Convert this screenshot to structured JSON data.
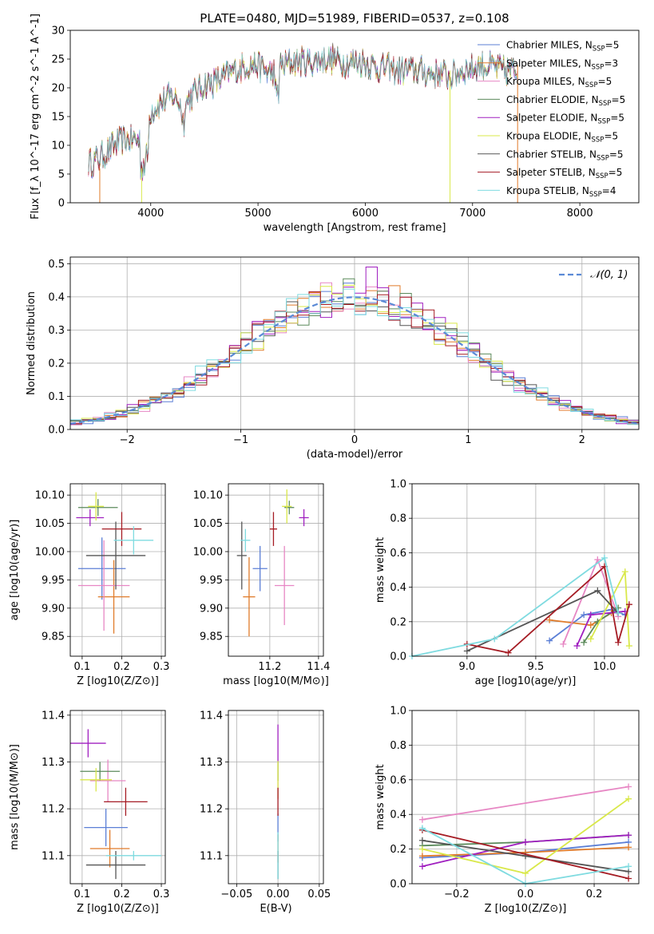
{
  "page_title": "PLATE=0480, MJD=51989, FIBERID=0537, z=0.108",
  "colors": {
    "Chabrier MILES": "#5b7fd6",
    "Salpeter MILES": "#e07b2a",
    "Kroupa MILES": "#e787c4",
    "Chabrier ELODIE": "#5b8a5b",
    "Salpeter ELODIE": "#a020c0",
    "Kroupa ELODIE": "#d9e84a",
    "Chabrier STELIB": "#555555",
    "Salpeter STELIB": "#a51c24",
    "Kroupa STELIB": "#7fdbe0",
    "normal_curve": "#5b8ad6",
    "grid": "#b0b0b0"
  },
  "chart_data": [
    {
      "id": "spectrum",
      "type": "line",
      "title": "PLATE=0480, MJD=51989, FIBERID=0537, z=0.108",
      "xlabel": "wavelength [Angstrom, rest frame]",
      "ylabel": "Flux [f_λ 10^-17 erg cm^-2 s^-1 A^-1]",
      "xlim": [
        3250,
        8550
      ],
      "ylim": [
        0,
        30
      ],
      "xticks": [
        4000,
        5000,
        6000,
        7000,
        8000
      ],
      "yticks": [
        0,
        5,
        10,
        15,
        20,
        25,
        30
      ],
      "grid": false,
      "legend_position": "right",
      "continuum_x": [
        3420,
        3500,
        3600,
        3700,
        3800,
        3900,
        3950,
        4000,
        4100,
        4200,
        4300,
        4400,
        4500,
        4600,
        4700,
        4800,
        4900,
        5000,
        5100,
        5200,
        5300,
        5400,
        5500,
        5600,
        5700,
        5800,
        5900,
        6000,
        6100,
        6200,
        6300,
        6400,
        6500,
        6600,
        6700,
        6800,
        6900,
        7000,
        7100,
        7200,
        7300,
        7400
      ],
      "continuum_y": [
        7,
        7.5,
        9,
        10.5,
        11,
        11,
        12,
        16,
        17.5,
        18.5,
        17,
        19,
        20.5,
        21,
        22,
        23,
        24,
        24,
        22.5,
        23.5,
        24.5,
        24.5,
        24.5,
        25,
        25,
        24.5,
        24.5,
        24.5,
        23.5,
        23.5,
        23,
        23,
        23,
        22.5,
        22.5,
        22,
        23,
        23.5,
        24,
        23.5,
        23,
        23
      ],
      "series": [
        {
          "name": "Chabrier MILES, N_SSP=5",
          "label_main": "Chabrier MILES, N",
          "label_sub": "SSP",
          "label_tail": "=5"
        },
        {
          "name": "Salpeter MILES, N_SSP=3",
          "label_main": "Salpeter MILES, N",
          "label_sub": "SSP",
          "label_tail": "=3"
        },
        {
          "name": "Kroupa MILES, N_SSP=5",
          "label_main": "Kroupa MILES, N",
          "label_sub": "SSP",
          "label_tail": "=5"
        },
        {
          "name": "Chabrier ELODIE, N_SSP=5",
          "label_main": "Chabrier ELODIE, N",
          "label_sub": "SSP",
          "label_tail": "=5"
        },
        {
          "name": "Salpeter ELODIE, N_SSP=5",
          "label_main": "Salpeter ELODIE, N",
          "label_sub": "SSP",
          "label_tail": "=5"
        },
        {
          "name": "Kroupa ELODIE, N_SSP=5",
          "label_main": "Kroupa ELODIE, N",
          "label_sub": "SSP",
          "label_tail": "=5"
        },
        {
          "name": "Chabrier STELIB, N_SSP=5",
          "label_main": "Chabrier STELIB, N",
          "label_sub": "SSP",
          "label_tail": "=5"
        },
        {
          "name": "Salpeter STELIB, N_SSP=5",
          "label_main": "Salpeter STELIB, N",
          "label_sub": "SSP",
          "label_tail": "=5"
        },
        {
          "name": "Kroupa STELIB, N_SSP=4",
          "label_main": "Kroupa STELIB, N",
          "label_sub": "SSP",
          "label_tail": "=4"
        }
      ]
    },
    {
      "id": "residuals",
      "type": "bar",
      "xlabel": "(data-model)/error",
      "ylabel": "Normed distribution",
      "xlim": [
        -2.5,
        2.5
      ],
      "ylim": [
        0,
        0.52
      ],
      "xticks": [
        -2,
        -1,
        0,
        1,
        2
      ],
      "yticks": [
        0.0,
        0.1,
        0.2,
        0.3,
        0.4,
        0.5
      ],
      "grid": true,
      "legend_position": "top-right",
      "legend_label": "𝒩(0, 1)",
      "bin_width": 0.1
    },
    {
      "id": "age_vs_Z",
      "type": "scatter",
      "xlabel": "Z [log10(Z/Z⊙)]",
      "ylabel": "age [log10(age/yr)]",
      "xlim": [
        0.07,
        0.31
      ],
      "ylim": [
        9.815,
        10.12
      ],
      "xticks": [
        0.1,
        0.2,
        0.3
      ],
      "yticks": [
        9.85,
        9.9,
        9.95,
        10.0,
        10.05,
        10.1
      ],
      "grid": true,
      "points": [
        {
          "series": "Chabrier MILES",
          "x": 0.15,
          "xerr": 0.06,
          "y": 9.97,
          "yerr": 0.055
        },
        {
          "series": "Salpeter MILES",
          "x": 0.18,
          "xerr": 0.04,
          "y": 9.92,
          "yerr": 0.065
        },
        {
          "series": "Kroupa MILES",
          "x": 0.155,
          "xerr": 0.065,
          "y": 9.94,
          "yerr": 0.08
        },
        {
          "series": "Chabrier ELODIE",
          "x": 0.14,
          "xerr": 0.05,
          "y": 10.078,
          "yerr": 0.015
        },
        {
          "series": "Salpeter ELODIE",
          "x": 0.12,
          "xerr": 0.035,
          "y": 10.06,
          "yerr": 0.015
        },
        {
          "series": "Kroupa ELODIE",
          "x": 0.135,
          "xerr": 0.02,
          "y": 10.08,
          "yerr": 0.025
        },
        {
          "series": "Chabrier STELIB",
          "x": 0.185,
          "xerr": 0.075,
          "y": 9.993,
          "yerr": 0.06
        },
        {
          "series": "Salpeter STELIB",
          "x": 0.2,
          "xerr": 0.05,
          "y": 10.04,
          "yerr": 0.03
        },
        {
          "series": "Kroupa STELIB",
          "x": 0.23,
          "xerr": 0.05,
          "y": 10.02,
          "yerr": 0.025
        }
      ]
    },
    {
      "id": "age_vs_mass",
      "type": "scatter",
      "xlabel": "mass [log10(M/M⊙)]",
      "ylabel": "",
      "xlim": [
        11.03,
        11.42
      ],
      "ylim": [
        9.815,
        10.12
      ],
      "xticks": [
        11.2,
        11.4
      ],
      "yticks": [
        9.85,
        9.9,
        9.95,
        10.0,
        10.05,
        10.1
      ],
      "grid": true,
      "points": [
        {
          "series": "Chabrier MILES",
          "x": 11.16,
          "xerr": 0.03,
          "y": 9.97,
          "yerr": 0.04
        },
        {
          "series": "Salpeter MILES",
          "x": 11.115,
          "xerr": 0.025,
          "y": 9.92,
          "yerr": 0.07
        },
        {
          "series": "Kroupa MILES",
          "x": 11.26,
          "xerr": 0.04,
          "y": 9.94,
          "yerr": 0.07
        },
        {
          "series": "Chabrier ELODIE",
          "x": 11.28,
          "xerr": 0.02,
          "y": 10.078,
          "yerr": 0.012
        },
        {
          "series": "Salpeter ELODIE",
          "x": 11.34,
          "xerr": 0.02,
          "y": 10.06,
          "yerr": 0.015
        },
        {
          "series": "Kroupa ELODIE",
          "x": 11.27,
          "xerr": 0.02,
          "y": 10.08,
          "yerr": 0.03
        },
        {
          "series": "Chabrier STELIB",
          "x": 11.085,
          "xerr": 0.02,
          "y": 9.993,
          "yerr": 0.06
        },
        {
          "series": "Salpeter STELIB",
          "x": 11.215,
          "xerr": 0.015,
          "y": 10.04,
          "yerr": 0.03
        },
        {
          "series": "Kroupa STELIB",
          "x": 11.1,
          "xerr": 0.02,
          "y": 10.02,
          "yerr": 0.02
        }
      ]
    },
    {
      "id": "weight_vs_age",
      "type": "line",
      "xlabel": "age [log10(age/yr)]",
      "ylabel": "mass weight",
      "xlim": [
        8.6,
        10.25
      ],
      "ylim": [
        0,
        1
      ],
      "xticks": [
        9.0,
        9.5,
        10.0
      ],
      "yticks": [
        0.0,
        0.2,
        0.4,
        0.6,
        0.8,
        1.0
      ],
      "grid": true,
      "series": [
        {
          "series": "Chabrier MILES",
          "x": [
            9.6,
            9.85,
            10.05,
            10.15
          ],
          "y": [
            0.09,
            0.24,
            0.27,
            0.24
          ]
        },
        {
          "series": "Salpeter MILES",
          "x": [
            9.6,
            9.9,
            10.05
          ],
          "y": [
            0.21,
            0.18,
            0.25
          ]
        },
        {
          "series": "Kroupa MILES",
          "x": [
            9.7,
            9.95,
            10.1
          ],
          "y": [
            0.07,
            0.56,
            0.23
          ]
        },
        {
          "series": "Chabrier ELODIE",
          "x": [
            9.85,
            9.95,
            10.1
          ],
          "y": [
            0.08,
            0.2,
            0.28
          ]
        },
        {
          "series": "Salpeter ELODIE",
          "x": [
            9.8,
            9.9,
            10.15
          ],
          "y": [
            0.06,
            0.24,
            0.26
          ]
        },
        {
          "series": "Kroupa ELODIE",
          "x": [
            9.9,
            10.15,
            10.18
          ],
          "y": [
            0.1,
            0.49,
            0.06
          ]
        },
        {
          "series": "Chabrier STELIB",
          "x": [
            9.0,
            9.95,
            10.1
          ],
          "y": [
            0.03,
            0.38,
            0.25
          ]
        },
        {
          "series": "Salpeter STELIB",
          "x": [
            9.0,
            9.3,
            10.0,
            10.1,
            10.18
          ],
          "y": [
            0.07,
            0.02,
            0.52,
            0.08,
            0.3
          ]
        },
        {
          "series": "Kroupa STELIB",
          "x": [
            8.6,
            9.2,
            10.0,
            10.1
          ],
          "y": [
            0.0,
            0.1,
            0.57,
            0.25
          ]
        }
      ]
    },
    {
      "id": "mass_vs_Z",
      "type": "scatter",
      "xlabel": "Z [log10(Z/Z⊙)]",
      "ylabel": "mass [log10(M/M⊙)]",
      "xlim": [
        0.07,
        0.31
      ],
      "ylim": [
        11.04,
        11.41
      ],
      "xticks": [
        0.1,
        0.2,
        0.3
      ],
      "yticks": [
        11.1,
        11.2,
        11.3,
        11.4
      ],
      "grid": true,
      "points": [
        {
          "series": "Chabrier MILES",
          "x": 0.16,
          "xerr": 0.055,
          "y": 11.16,
          "yerr": 0.04
        },
        {
          "series": "Salpeter MILES",
          "x": 0.17,
          "xerr": 0.05,
          "y": 11.115,
          "yerr": 0.04
        },
        {
          "series": "Kroupa MILES",
          "x": 0.165,
          "xerr": 0.045,
          "y": 11.26,
          "yerr": 0.045
        },
        {
          "series": "Chabrier ELODIE",
          "x": 0.145,
          "xerr": 0.05,
          "y": 11.28,
          "yerr": 0.02
        },
        {
          "series": "Salpeter ELODIE",
          "x": 0.115,
          "xerr": 0.045,
          "y": 11.34,
          "yerr": 0.03
        },
        {
          "series": "Kroupa ELODIE",
          "x": 0.135,
          "xerr": 0.04,
          "y": 11.262,
          "yerr": 0.025
        },
        {
          "series": "Chabrier STELIB",
          "x": 0.185,
          "xerr": 0.075,
          "y": 11.08,
          "yerr": 0.03
        },
        {
          "series": "Salpeter STELIB",
          "x": 0.21,
          "xerr": 0.055,
          "y": 11.215,
          "yerr": 0.03
        },
        {
          "series": "Kroupa STELIB",
          "x": 0.23,
          "xerr": 0.07,
          "y": 11.1,
          "yerr": 0.01
        }
      ]
    },
    {
      "id": "mass_vs_ebv",
      "type": "scatter",
      "xlabel": "E(B-V)",
      "ylabel": "",
      "xlim": [
        -0.06,
        0.055
      ],
      "ylim": [
        11.04,
        11.41
      ],
      "xticks": [
        -0.05,
        0.0,
        0.05
      ],
      "yticks": [
        11.1,
        11.2,
        11.3,
        11.4
      ],
      "grid": true,
      "points": [
        {
          "series": "Chabrier MILES",
          "x": 0,
          "xerr": 0,
          "y": 11.16,
          "yerr": 0.03
        },
        {
          "series": "Salpeter MILES",
          "x": 0,
          "xerr": 0,
          "y": 11.115,
          "yerr": 0.03
        },
        {
          "series": "Kroupa MILES",
          "x": 0,
          "xerr": 0,
          "y": 11.26,
          "yerr": 0.04
        },
        {
          "series": "Chabrier ELODIE",
          "x": 0,
          "xerr": 0,
          "y": 11.28,
          "yerr": 0.02
        },
        {
          "series": "Salpeter ELODIE",
          "x": 0,
          "xerr": 0,
          "y": 11.34,
          "yerr": 0.04
        },
        {
          "series": "Kroupa ELODIE",
          "x": 0,
          "xerr": 0,
          "y": 11.262,
          "yerr": 0.04
        },
        {
          "series": "Chabrier STELIB",
          "x": 0,
          "xerr": 0,
          "y": 11.08,
          "yerr": 0.03
        },
        {
          "series": "Salpeter STELIB",
          "x": 0,
          "xerr": 0,
          "y": 11.215,
          "yerr": 0.03
        },
        {
          "series": "Kroupa STELIB",
          "x": 0,
          "xerr": 0,
          "y": 11.1,
          "yerr": 0.05
        }
      ]
    },
    {
      "id": "weight_vs_Z",
      "type": "line",
      "xlabel": "Z [log10(Z/Z⊙)]",
      "ylabel": "mass weight",
      "xlim": [
        -0.33,
        0.33
      ],
      "ylim": [
        0,
        1
      ],
      "xticks": [
        -0.2,
        0.0,
        0.2
      ],
      "yticks": [
        0.0,
        0.2,
        0.4,
        0.6,
        0.8,
        1.0
      ],
      "grid": true,
      "series": [
        {
          "series": "Chabrier MILES",
          "x": [
            -0.3,
            0.0,
            0.3
          ],
          "y": [
            0.15,
            0.18,
            0.24
          ]
        },
        {
          "series": "Salpeter MILES",
          "x": [
            -0.3,
            0.0,
            0.3
          ],
          "y": [
            0.16,
            0.18,
            0.21
          ]
        },
        {
          "series": "Kroupa MILES",
          "x": [
            -0.3,
            0.3
          ],
          "y": [
            0.37,
            0.56
          ]
        },
        {
          "series": "Chabrier ELODIE",
          "x": [
            -0.3,
            0.0,
            0.3
          ],
          "y": [
            0.22,
            0.24,
            0.28
          ]
        },
        {
          "series": "Salpeter ELODIE",
          "x": [
            -0.3,
            0.0,
            0.3
          ],
          "y": [
            0.1,
            0.24,
            0.28
          ]
        },
        {
          "series": "Kroupa ELODIE",
          "x": [
            -0.3,
            0.0,
            0.3
          ],
          "y": [
            0.2,
            0.06,
            0.49
          ]
        },
        {
          "series": "Chabrier STELIB",
          "x": [
            -0.3,
            0.0,
            0.3
          ],
          "y": [
            0.25,
            0.16,
            0.07
          ]
        },
        {
          "series": "Salpeter STELIB",
          "x": [
            -0.3,
            0.3
          ],
          "y": [
            0.31,
            0.03
          ]
        },
        {
          "series": "Kroupa STELIB",
          "x": [
            -0.3,
            0.0,
            0.3
          ],
          "y": [
            0.32,
            0.0,
            0.1
          ]
        }
      ]
    }
  ]
}
